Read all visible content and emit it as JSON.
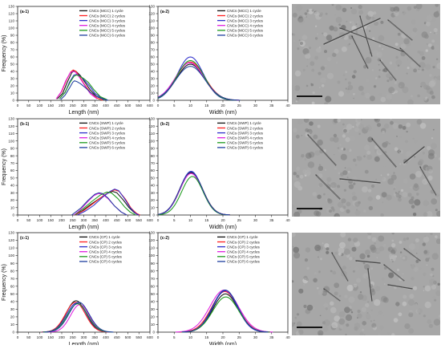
{
  "colors": {
    "c1": "#111111",
    "c2": "#ff2020",
    "c3": "#2f2fcc",
    "c4": "#e020e0",
    "c5": "#1e9a1e",
    "c6": "#1f3f9f"
  },
  "chart_data": [
    {
      "id": "a1",
      "panel_label": "(a-1)",
      "type": "line",
      "xlabel": "Length (nm)",
      "ylabel": "Frequency (%)",
      "xlim": [
        0,
        600
      ],
      "ylim": [
        0,
        130
      ],
      "xticks": [
        0,
        50,
        100,
        150,
        200,
        250,
        300,
        350,
        400,
        450,
        500,
        550,
        600
      ],
      "yticks": [
        0,
        10,
        20,
        30,
        40,
        50,
        60,
        70,
        80,
        90,
        100,
        110,
        120,
        130
      ],
      "legend_position": "top-right",
      "series": [
        {
          "name": "CNCs (MCC) 1 cycle",
          "color": "#111111",
          "points": [
            [
              180,
              2
            ],
            [
              205,
              10
            ],
            [
              225,
              25
            ],
            [
              245,
              38
            ],
            [
              255,
              41
            ],
            [
              265,
              40
            ],
            [
              285,
              34
            ],
            [
              305,
              25
            ],
            [
              330,
              14
            ],
            [
              360,
              5
            ],
            [
              390,
              1
            ]
          ]
        },
        {
          "name": "CNCs (MCC) 2 cycles",
          "color": "#ff2020",
          "points": [
            [
              175,
              2
            ],
            [
              200,
              12
            ],
            [
              220,
              27
            ],
            [
              240,
              39
            ],
            [
              252,
              42
            ],
            [
              265,
              40
            ],
            [
              285,
              31
            ],
            [
              305,
              21
            ],
            [
              330,
              11
            ],
            [
              360,
              3
            ],
            [
              385,
              0
            ]
          ]
        },
        {
          "name": "CNCs (MCC) 3 cycles",
          "color": "#2f2fcc",
          "points": [
            [
              190,
              2
            ],
            [
              215,
              11
            ],
            [
              235,
              25
            ],
            [
              255,
              35
            ],
            [
              270,
              36
            ],
            [
              285,
              33
            ],
            [
              305,
              27
            ],
            [
              325,
              20
            ],
            [
              350,
              10
            ],
            [
              380,
              3
            ],
            [
              410,
              0
            ]
          ]
        },
        {
          "name": "CNCs (MCC) 4 cycles",
          "color": "#e020e0",
          "points": [
            [
              175,
              2
            ],
            [
              198,
              12
            ],
            [
              218,
              27
            ],
            [
              238,
              38
            ],
            [
              250,
              40
            ],
            [
              262,
              39
            ],
            [
              282,
              31
            ],
            [
              305,
              20
            ],
            [
              330,
              9
            ],
            [
              360,
              2
            ]
          ]
        },
        {
          "name": "CNCs (MCC) 5 cycles",
          "color": "#1e9a1e",
          "points": [
            [
              190,
              2
            ],
            [
              215,
              11
            ],
            [
              238,
              25
            ],
            [
              255,
              33
            ],
            [
              265,
              35
            ],
            [
              278,
              34
            ],
            [
              300,
              30
            ],
            [
              320,
              25
            ],
            [
              345,
              15
            ],
            [
              375,
              5
            ],
            [
              405,
              1
            ]
          ]
        },
        {
          "name": "CNCs (MCC) 6 cycles",
          "color": "#1f3f9f",
          "points": [
            [
              195,
              1
            ],
            [
              215,
              7
            ],
            [
              235,
              17
            ],
            [
              250,
              25
            ],
            [
              258,
              27
            ],
            [
              268,
              26
            ],
            [
              285,
              23
            ],
            [
              305,
              18
            ],
            [
              330,
              11
            ],
            [
              355,
              6
            ],
            [
              385,
              2
            ],
            [
              410,
              0
            ]
          ]
        }
      ]
    },
    {
      "id": "a2",
      "panel_label": "(a-2)",
      "type": "line",
      "xlabel": "Width (nm)",
      "ylabel": "",
      "xlim": [
        0,
        40
      ],
      "ylim": [
        0,
        130
      ],
      "xticks": [
        0,
        5,
        10,
        15,
        20,
        25,
        30,
        35,
        40
      ],
      "yticks": [
        0,
        10,
        20,
        30,
        40,
        50,
        60,
        70,
        80,
        90,
        100,
        110,
        120,
        130
      ],
      "legend_position": "top-right",
      "series": [
        {
          "name": "CNCs (MCC) 1 cycle",
          "color": "#111111",
          "gauss": [
            10,
            50,
            4.3
          ]
        },
        {
          "name": "CNCs (MCC) 2 cycles",
          "color": "#ff2020",
          "gauss": [
            10,
            53,
            4.4
          ]
        },
        {
          "name": "CNCs (MCC) 3 cycles",
          "color": "#2f2fcc",
          "gauss": [
            10,
            60,
            4.0
          ]
        },
        {
          "name": "CNCs (MCC) 4 cycles",
          "color": "#e020e0",
          "gauss": [
            9.8,
            52,
            4.4
          ]
        },
        {
          "name": "CNCs (MCC) 5 cycles",
          "color": "#1e9a1e",
          "gauss": [
            10,
            55,
            4.2
          ]
        },
        {
          "name": "CNCs (MCC) 6 cycles",
          "color": "#1f3f9f",
          "gauss": [
            10,
            47,
            4.5
          ]
        }
      ]
    },
    {
      "id": "b1",
      "panel_label": "(b-1)",
      "type": "line",
      "xlabel": "Length (nm)",
      "ylabel": "Frequency (%)",
      "xlim": [
        0,
        600
      ],
      "ylim": [
        0,
        130
      ],
      "xticks": [
        0,
        50,
        100,
        150,
        200,
        250,
        300,
        350,
        400,
        450,
        500,
        550,
        600
      ],
      "yticks": [
        0,
        10,
        20,
        30,
        40,
        50,
        60,
        70,
        80,
        90,
        100,
        110,
        120,
        130
      ],
      "legend_position": "top-right",
      "series": [
        {
          "name": "CNCs (SWP) 1 cycle",
          "color": "#111111",
          "points": [
            [
              255,
              0
            ],
            [
              290,
              5
            ],
            [
              330,
              14
            ],
            [
              370,
              22
            ],
            [
              405,
              29
            ],
            [
              430,
              32
            ],
            [
              450,
              30
            ],
            [
              480,
              20
            ],
            [
              505,
              10
            ],
            [
              530,
              3
            ],
            [
              550,
              0
            ]
          ]
        },
        {
          "name": "CNCs (SWP) 2 cycles",
          "color": "#ff2020",
          "points": [
            [
              260,
              0
            ],
            [
              300,
              6
            ],
            [
              340,
              15
            ],
            [
              380,
              24
            ],
            [
              415,
              31
            ],
            [
              440,
              34
            ],
            [
              460,
              32
            ],
            [
              490,
              21
            ],
            [
              515,
              9
            ],
            [
              540,
              2
            ],
            [
              555,
              0
            ]
          ]
        },
        {
          "name": "CNCs (SWP) 3 cycles",
          "color": "#2f2fcc",
          "points": [
            [
              270,
              0
            ],
            [
              305,
              5
            ],
            [
              345,
              13
            ],
            [
              385,
              24
            ],
            [
              420,
              32
            ],
            [
              440,
              35
            ],
            [
              458,
              33
            ],
            [
              485,
              22
            ],
            [
              510,
              10
            ],
            [
              535,
              2
            ],
            [
              550,
              0
            ]
          ]
        },
        {
          "name": "CNCs (SWP) 4 cycles",
          "color": "#e020e0",
          "points": [
            [
              255,
              0
            ],
            [
              285,
              7
            ],
            [
              315,
              17
            ],
            [
              345,
              26
            ],
            [
              365,
              29
            ],
            [
              385,
              28
            ],
            [
              410,
              22
            ],
            [
              440,
              12
            ],
            [
              470,
              4
            ],
            [
              495,
              0
            ]
          ]
        },
        {
          "name": "CNCs (SWP) 5 cycles",
          "color": "#1e9a1e",
          "points": [
            [
              260,
              0
            ],
            [
              295,
              8
            ],
            [
              335,
              18
            ],
            [
              375,
              27
            ],
            [
              405,
              31
            ],
            [
              425,
              30
            ],
            [
              455,
              22
            ],
            [
              485,
              11
            ],
            [
              510,
              4
            ],
            [
              535,
              0
            ]
          ]
        },
        {
          "name": "CNCs (SWP) 6 cycles",
          "color": "#1f3f9f",
          "points": [
            [
              245,
              0
            ],
            [
              285,
              9
            ],
            [
              320,
              20
            ],
            [
              350,
              28
            ],
            [
              368,
              30
            ],
            [
              385,
              29
            ],
            [
              410,
              23
            ],
            [
              440,
              12
            ],
            [
              470,
              4
            ],
            [
              495,
              0
            ]
          ]
        }
      ]
    },
    {
      "id": "b2",
      "panel_label": "(b-2)",
      "type": "line",
      "xlabel": "Width (nm)",
      "ylabel": "",
      "xlim": [
        0,
        40
      ],
      "ylim": [
        0,
        130
      ],
      "xticks": [
        0,
        5,
        10,
        15,
        20,
        25,
        30,
        35,
        40
      ],
      "yticks": [
        0,
        10,
        20,
        30,
        40,
        50,
        60,
        70,
        80,
        90,
        100,
        110,
        120,
        130
      ],
      "legend_position": "top-right",
      "series": [
        {
          "name": "CNCs (SWP) 1 cycle",
          "color": "#111111",
          "gauss": [
            10.3,
            57,
            3.5
          ]
        },
        {
          "name": "CNCs (SWP) 2 cycles",
          "color": "#ff2020",
          "gauss": [
            10.2,
            58,
            3.5
          ]
        },
        {
          "name": "CNCs (SWP) 3 cycles",
          "color": "#2f2fcc",
          "gauss": [
            10.2,
            59,
            3.4
          ]
        },
        {
          "name": "CNCs (SWP) 4 cycles",
          "color": "#e020e0",
          "gauss": [
            10.2,
            56,
            3.5
          ]
        },
        {
          "name": "CNCs (SWP) 5 cycles",
          "color": "#1e9a1e",
          "gauss": [
            10.6,
            52,
            3.3
          ]
        },
        {
          "name": "CNCs (SWP) 6 cycles",
          "color": "#1f3f9f",
          "gauss": [
            10.2,
            58,
            3.5
          ]
        }
      ]
    },
    {
      "id": "c1",
      "panel_label": "(c-1)",
      "type": "line",
      "xlabel": "Length (nm)",
      "ylabel": "Frequency (%)",
      "xlim": [
        0,
        600
      ],
      "ylim": [
        0,
        130
      ],
      "xticks": [
        0,
        50,
        100,
        150,
        200,
        250,
        300,
        350,
        400,
        450,
        500,
        550,
        600
      ],
      "yticks": [
        0,
        10,
        20,
        30,
        40,
        50,
        60,
        70,
        80,
        90,
        100,
        110,
        120,
        130
      ],
      "legend_position": "top-right",
      "series": [
        {
          "name": "CNCs (CP) 1 cycle",
          "color": "#111111",
          "gauss": [
            265,
            41,
            45
          ]
        },
        {
          "name": "CNCs (CP) 2 cycles",
          "color": "#ff2020",
          "gauss": [
            262,
            39,
            45
          ]
        },
        {
          "name": "CNCs (CP) 3 cycles",
          "color": "#2f2fcc",
          "gauss": [
            268,
            38,
            46
          ]
        },
        {
          "name": "CNCs (CP) 4 cycles",
          "color": "#e020e0",
          "gauss": [
            282,
            36,
            42
          ]
        },
        {
          "name": "CNCs (CP) 5 cycles",
          "color": "#1e9a1e",
          "gauss": [
            272,
            37,
            46
          ]
        },
        {
          "name": "CNCs (CP) 6 cycles",
          "color": "#1f3f9f",
          "gauss": [
            278,
            39,
            46
          ]
        }
      ]
    },
    {
      "id": "c2",
      "panel_label": "(c-2)",
      "type": "line",
      "xlabel": "Width (nm)",
      "ylabel": "",
      "xlim": [
        0,
        40
      ],
      "ylim": [
        0,
        130
      ],
      "xticks": [
        0,
        5,
        10,
        15,
        20,
        25,
        30,
        35,
        40
      ],
      "yticks": [
        0,
        10,
        20,
        30,
        40,
        50,
        60,
        70,
        80,
        90,
        100,
        110,
        120,
        130
      ],
      "legend_position": "top-right",
      "series": [
        {
          "name": "CNCs (CP) 1 cycle",
          "color": "#111111",
          "gauss": [
            20.8,
            50,
            3.9
          ]
        },
        {
          "name": "CNCs (CP) 2 cycles",
          "color": "#ff2020",
          "gauss": [
            20.6,
            53,
            4.1
          ]
        },
        {
          "name": "CNCs (CP) 3 cycles",
          "color": "#2f2fcc",
          "gauss": [
            20.7,
            54,
            3.8
          ]
        },
        {
          "name": "CNCs (CP) 4 cycles",
          "color": "#e020e0",
          "gauss": [
            20.4,
            55,
            4.4
          ]
        },
        {
          "name": "CNCs (CP) 5 cycles",
          "color": "#1e9a1e",
          "gauss": [
            20.9,
            46,
            4.0
          ]
        },
        {
          "name": "CNCs (CP) 6 cycles",
          "color": "#1f3f9f",
          "gauss": [
            20.7,
            55,
            3.9
          ]
        }
      ]
    }
  ],
  "micrographs": [
    {
      "id": "m1",
      "kind": "TEM micrograph",
      "rods": [
        [
          40,
          50,
          110,
          18
        ],
        [
          60,
          30,
          140,
          60
        ],
        [
          75,
          40,
          95,
          80
        ],
        [
          120,
          20,
          150,
          45
        ],
        [
          135,
          55,
          160,
          78
        ],
        [
          85,
          15,
          100,
          65
        ],
        [
          110,
          70,
          130,
          95
        ]
      ]
    },
    {
      "id": "m2",
      "kind": "TEM micrograph",
      "rods": [
        [
          20,
          20,
          55,
          58
        ],
        [
          100,
          25,
          130,
          60
        ],
        [
          140,
          55,
          165,
          35
        ],
        [
          60,
          75,
          110,
          80
        ],
        [
          30,
          70,
          60,
          100
        ],
        [
          160,
          60,
          180,
          95
        ]
      ]
    },
    {
      "id": "m3",
      "kind": "TEM micrograph",
      "rods": [
        [
          50,
          25,
          70,
          60
        ],
        [
          80,
          35,
          110,
          38
        ],
        [
          95,
          45,
          100,
          85
        ],
        [
          115,
          40,
          140,
          60
        ],
        [
          120,
          65,
          150,
          70
        ],
        [
          40,
          70,
          60,
          85
        ],
        [
          140,
          20,
          160,
          35
        ]
      ]
    }
  ]
}
